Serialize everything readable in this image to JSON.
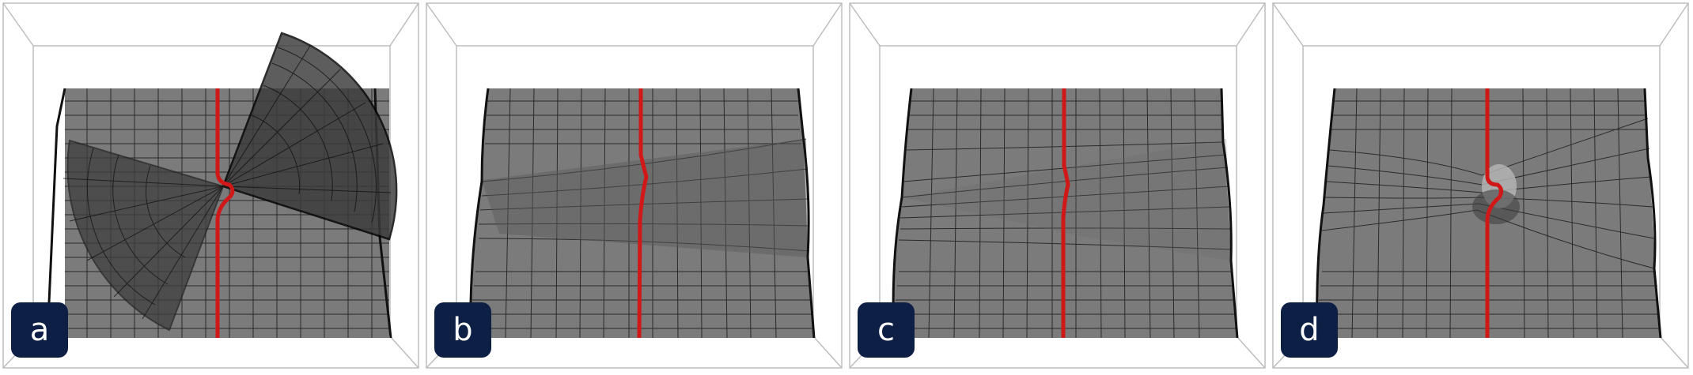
{
  "panels": [
    {
      "label": "a"
    },
    {
      "label": "b"
    },
    {
      "label": "c"
    },
    {
      "label": "d"
    }
  ],
  "colors": {
    "surface": "#7b7b7b",
    "grid": "#1c1c1c",
    "seam": "#d01818",
    "badge": "#0e1f45",
    "box": "#bdbdbd"
  }
}
